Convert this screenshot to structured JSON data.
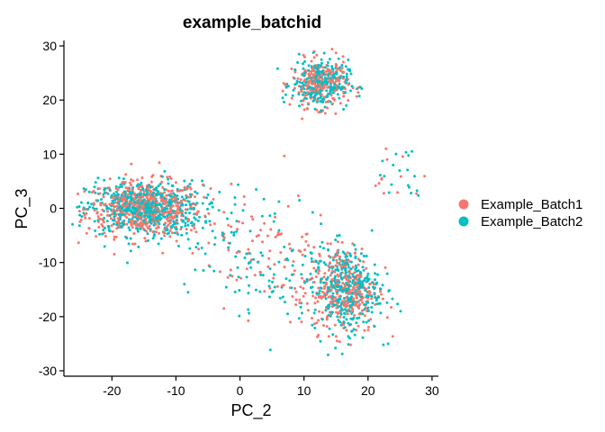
{
  "chart_data": {
    "type": "scatter",
    "title": "example_batchid",
    "xlabel": "PC_2",
    "ylabel": "PC_3",
    "xlim": [
      -27.5,
      31
    ],
    "ylim": [
      -31,
      31
    ],
    "x_ticks": [
      -20,
      -10,
      0,
      10,
      20,
      30
    ],
    "y_ticks": [
      -30,
      -20,
      -10,
      0,
      10,
      20,
      30
    ],
    "grid": false,
    "legend_position": "right",
    "series": [
      {
        "name": "Example_Batch1",
        "color": "#F8766D"
      },
      {
        "name": "Example_Batch2",
        "color": "#00BFC4"
      }
    ],
    "clusters": [
      {
        "label": "left",
        "center": [
          -15,
          0
        ],
        "spread": [
          4.5,
          2.5
        ],
        "counts": [
          520,
          560
        ]
      },
      {
        "label": "top",
        "center": [
          12.5,
          23
        ],
        "spread": [
          2.2,
          2.2
        ],
        "counts": [
          230,
          260
        ]
      },
      {
        "label": "bottom-right",
        "center": [
          16.5,
          -15
        ],
        "spread": [
          2.6,
          4.0
        ],
        "counts": [
          300,
          340
        ]
      },
      {
        "label": "bridge",
        "center": [
          4,
          -9
        ],
        "spread": [
          8.0,
          5.5
        ],
        "counts": [
          130,
          150
        ]
      },
      {
        "label": "right-arm",
        "center": [
          25,
          7
        ],
        "spread": [
          2.2,
          3.5
        ],
        "counts": [
          12,
          18
        ]
      }
    ]
  }
}
